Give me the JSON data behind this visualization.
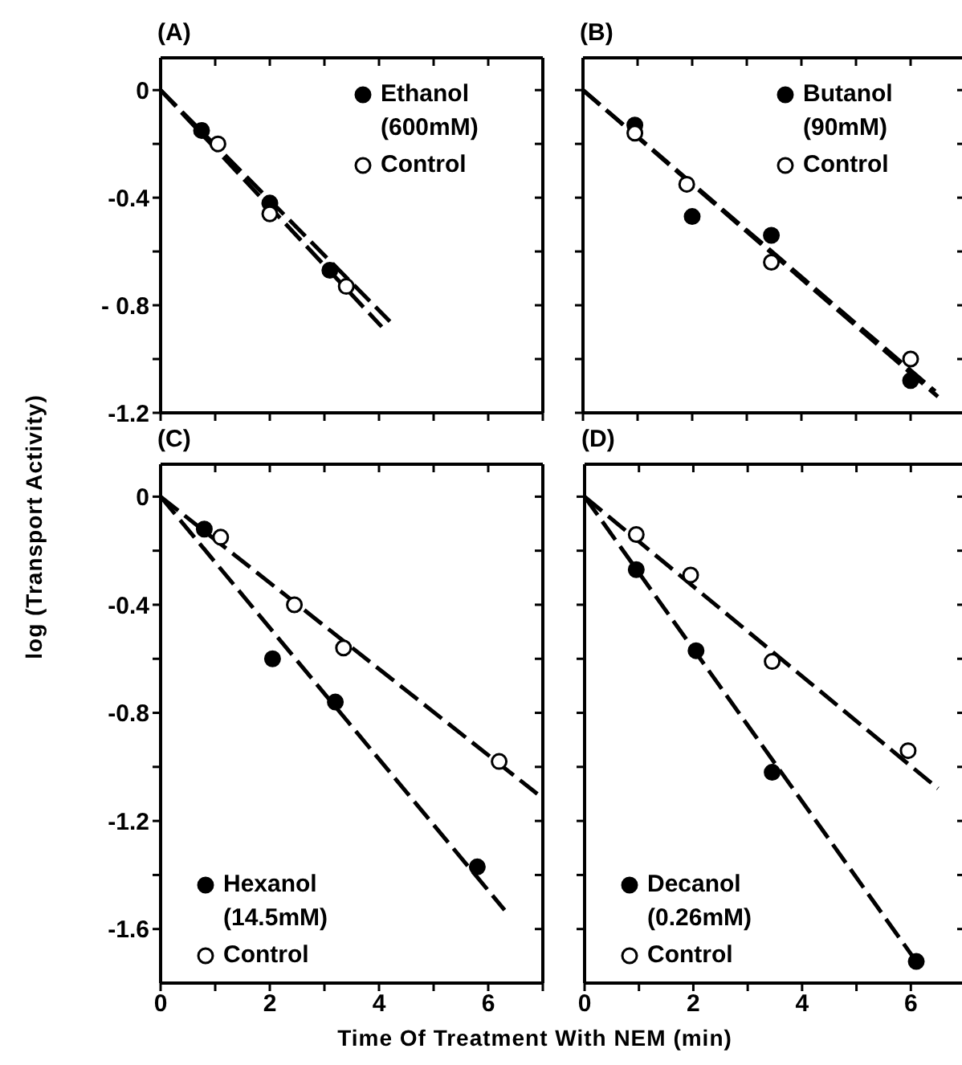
{
  "chart_data": [
    {
      "type": "scatter",
      "title": "(A)",
      "line_style": "dashed",
      "legend": "top right",
      "tick_labels": "y",
      "xlim": [
        0,
        7
      ],
      "xticks": [
        {
          "value": 0,
          "label": null
        },
        {
          "value": 1,
          "label": null
        },
        {
          "value": 2,
          "label": null
        },
        {
          "value": 3,
          "label": null
        },
        {
          "value": 4,
          "label": null
        },
        {
          "value": 5,
          "label": null
        },
        {
          "value": 6,
          "label": null
        },
        {
          "value": 7,
          "label": null
        }
      ],
      "ylim": [
        -1.2,
        0.12
      ],
      "yticks": [
        0,
        {
          "value": -0.2,
          "label": null
        },
        -0.4,
        {
          "value": -0.6,
          "label": null
        },
        {
          "value": -0.8,
          "label": "- 0.8"
        },
        {
          "value": -1.0,
          "label": null
        },
        -1.2
      ],
      "series": [
        {
          "name": "Ethanol (600mM)",
          "color": "#000000",
          "marker": "circle",
          "x": [
            0.75,
            2,
            3.1
          ],
          "values": [
            -0.15,
            -0.42,
            -0.67
          ]
        },
        {
          "name": "Control",
          "color": "#ffffff",
          "marker": "circle",
          "x": [
            1.05,
            2,
            3.4
          ],
          "values": [
            -0.2,
            -0.46,
            -0.73
          ]
        },
        {
          "type": "line",
          "color": "#000000",
          "marker": "none",
          "x": [
            0,
            4.2
          ],
          "values": [
            0,
            -0.86
          ]
        },
        {
          "type": "line",
          "color": "#000000",
          "marker": "none",
          "x": [
            0,
            4.05
          ],
          "values": [
            0,
            -0.88
          ]
        }
      ]
    },
    {
      "type": "scatter",
      "title": "(B)",
      "line_style": "dashed",
      "legend": "top right",
      "tick_labels": false,
      "xlim": [
        0,
        7
      ],
      "xticks": [
        {
          "value": 0,
          "label": null
        },
        {
          "value": 1,
          "label": null
        },
        {
          "value": 2,
          "label": null
        },
        {
          "value": 3,
          "label": null
        },
        {
          "value": 4,
          "label": null
        },
        {
          "value": 5,
          "label": null
        },
        {
          "value": 6,
          "label": null
        },
        {
          "value": 7,
          "label": null
        }
      ],
      "ylim": [
        -1.2,
        0.12
      ],
      "yticks": [
        {
          "value": 0,
          "label": null
        },
        {
          "value": -0.2,
          "label": null
        },
        {
          "value": -0.4,
          "label": null
        },
        {
          "value": -0.6,
          "label": null
        },
        {
          "value": -0.8,
          "label": null
        },
        {
          "value": -1.0,
          "label": null
        },
        {
          "value": -1.2,
          "label": null
        }
      ],
      "series": [
        {
          "name": "Butanol (90mM)",
          "color": "#000000",
          "marker": "circle",
          "x": [
            0.95,
            2,
            3.45,
            6
          ],
          "values": [
            -0.13,
            -0.47,
            -0.54,
            -1.08
          ]
        },
        {
          "name": "Control",
          "color": "#ffffff",
          "marker": "circle",
          "x": [
            0.95,
            1.9,
            3.45,
            6
          ],
          "values": [
            -0.16,
            -0.35,
            -0.64,
            -1.0
          ]
        },
        {
          "type": "line",
          "color": "#000000",
          "marker": "none",
          "x": [
            0,
            6.5
          ],
          "values": [
            0,
            -1.14
          ]
        },
        {
          "type": "line",
          "color": "#000000",
          "marker": "none",
          "x": [
            0,
            6.45
          ],
          "values": [
            0,
            -1.12
          ]
        }
      ]
    },
    {
      "type": "scatter",
      "title": "(C)",
      "xlabel": "Time Of Treatment With NEM (min)",
      "ylabel": "log (Transport Activity)",
      "line_style": "dashed",
      "legend": "bottom left",
      "xlim": [
        0,
        7
      ],
      "xticks": [
        0,
        {
          "value": 1,
          "label": null
        },
        2,
        {
          "value": 3,
          "label": null
        },
        4,
        {
          "value": 5,
          "label": null
        },
        6,
        {
          "value": 7,
          "label": null
        }
      ],
      "ylim": [
        -1.8,
        0.12
      ],
      "yticks": [
        0,
        {
          "value": -0.2,
          "label": null
        },
        -0.4,
        {
          "value": -0.6,
          "label": null
        },
        -0.8,
        {
          "value": -1.0,
          "label": null
        },
        -1.2,
        {
          "value": -1.4,
          "label": null
        },
        -1.6
      ],
      "series": [
        {
          "name": "Hexanol (14.5mM)",
          "color": "#000000",
          "marker": "circle",
          "x": [
            0.8,
            2.05,
            3.2,
            5.8
          ],
          "values": [
            -0.12,
            -0.6,
            -0.76,
            -1.37
          ]
        },
        {
          "name": "Control",
          "color": "#ffffff",
          "marker": "circle",
          "x": [
            1.1,
            2.45,
            3.35,
            6.2
          ],
          "values": [
            -0.15,
            -0.4,
            -0.56,
            -0.98
          ]
        },
        {
          "type": "line",
          "color": "#000000",
          "marker": "none",
          "x": [
            0,
            6.3
          ],
          "values": [
            0,
            -1.53
          ]
        },
        {
          "type": "line",
          "color": "#000000",
          "marker": "none",
          "x": [
            0,
            6.9
          ],
          "values": [
            0,
            -1.1
          ]
        }
      ]
    },
    {
      "type": "scatter",
      "title": "(D)",
      "line_style": "dashed",
      "legend": "bottom left",
      "tick_labels": "x",
      "xlim": [
        0,
        7
      ],
      "xticks": [
        0,
        {
          "value": 1,
          "label": null
        },
        2,
        {
          "value": 3,
          "label": null
        },
        4,
        {
          "value": 5,
          "label": null
        },
        6,
        {
          "value": 7,
          "label": null
        }
      ],
      "ylim": [
        -1.8,
        0.12
      ],
      "yticks": [
        {
          "value": 0,
          "label": null
        },
        {
          "value": -0.2,
          "label": null
        },
        {
          "value": -0.4,
          "label": null
        },
        {
          "value": -0.6,
          "label": null
        },
        {
          "value": -0.8,
          "label": null
        },
        {
          "value": -1.0,
          "label": null
        },
        {
          "value": -1.2,
          "label": null
        },
        {
          "value": -1.4,
          "label": null
        },
        {
          "value": -1.6,
          "label": null
        }
      ],
      "series": [
        {
          "name": "Decanol (0.26mM)",
          "color": "#000000",
          "marker": "circle",
          "x": [
            0.95,
            2.05,
            3.45,
            6.1
          ],
          "values": [
            -0.27,
            -0.57,
            -1.02,
            -1.72
          ]
        },
        {
          "name": "Control",
          "color": "#ffffff",
          "marker": "circle",
          "x": [
            0.95,
            1.95,
            3.45,
            5.95
          ],
          "values": [
            -0.14,
            -0.29,
            -0.61,
            -0.94
          ]
        },
        {
          "type": "line",
          "color": "#000000",
          "marker": "none",
          "x": [
            0,
            6.1
          ],
          "values": [
            0,
            -1.72
          ]
        },
        {
          "type": "line",
          "color": "#000000",
          "marker": "none",
          "x": [
            0,
            6.5
          ],
          "values": [
            0,
            -1.08
          ]
        }
      ]
    }
  ]
}
